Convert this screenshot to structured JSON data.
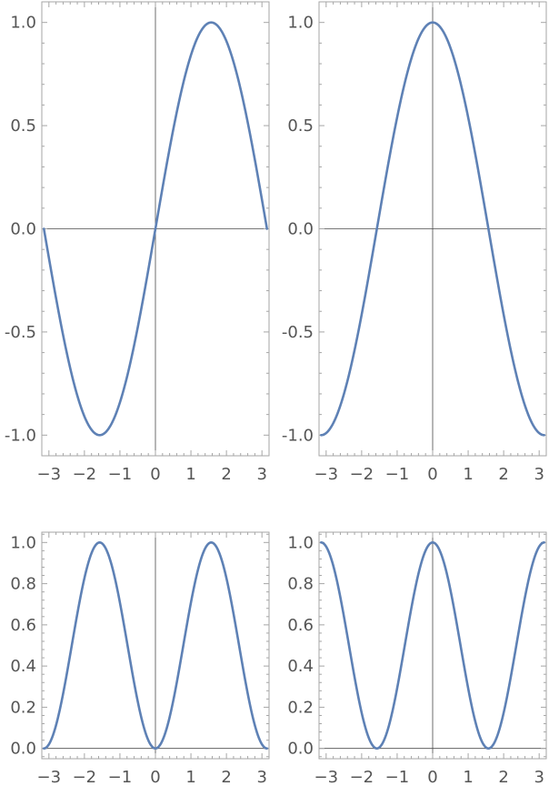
{
  "chart_data": [
    {
      "type": "line",
      "function": "sin(x)",
      "xlim": [
        -3.2,
        3.2
      ],
      "ylim": [
        -1.1,
        1.1
      ],
      "x_ticks": [
        -3,
        -2,
        -1,
        0,
        1,
        2,
        3
      ],
      "x_tick_labels": [
        "−3",
        "−2",
        "−1",
        "0",
        "1",
        "2",
        "3"
      ],
      "y_ticks": [
        -1.0,
        -0.5,
        0.0,
        0.5,
        1.0
      ],
      "y_tick_labels": [
        "-1.0",
        "-0.5",
        "0.0",
        "0.5",
        "1.0"
      ],
      "series": [
        {
          "x": [
            -3.1416,
            -2.618,
            -2.0944,
            -1.5708,
            -1.0472,
            -0.5236,
            0,
            0.5236,
            1.0472,
            1.5708,
            2.0944,
            2.618,
            3.1416
          ],
          "y": [
            0,
            -0.5,
            -0.866,
            -1.0,
            -0.866,
            -0.5,
            0,
            0.5,
            0.866,
            1.0,
            0.866,
            0.5,
            0
          ]
        }
      ],
      "color": "#5e81b5"
    },
    {
      "type": "line",
      "function": "cos(x)",
      "xlim": [
        -3.2,
        3.2
      ],
      "ylim": [
        -1.1,
        1.1
      ],
      "x_ticks": [
        -3,
        -2,
        -1,
        0,
        1,
        2,
        3
      ],
      "x_tick_labels": [
        "−3",
        "−2",
        "−1",
        "0",
        "1",
        "2",
        "3"
      ],
      "y_ticks": [
        -1.0,
        -0.5,
        0.0,
        0.5,
        1.0
      ],
      "y_tick_labels": [
        "-1.0",
        "-0.5",
        "0.0",
        "0.5",
        "1.0"
      ],
      "series": [
        {
          "x": [
            -3.1416,
            -2.618,
            -2.0944,
            -1.5708,
            -1.0472,
            -0.5236,
            0,
            0.5236,
            1.0472,
            1.5708,
            2.0944,
            2.618,
            3.1416
          ],
          "y": [
            -1.0,
            -0.866,
            -0.5,
            0,
            0.5,
            0.866,
            1.0,
            0.866,
            0.5,
            0,
            -0.5,
            -0.866,
            -1.0
          ]
        }
      ],
      "color": "#5e81b5"
    },
    {
      "type": "line",
      "function": "sin(x)^2",
      "xlim": [
        -3.2,
        3.2
      ],
      "ylim": [
        -0.05,
        1.05
      ],
      "x_ticks": [
        -3,
        -2,
        -1,
        0,
        1,
        2,
        3
      ],
      "x_tick_labels": [
        "−3",
        "−2",
        "−1",
        "0",
        "1",
        "2",
        "3"
      ],
      "y_ticks": [
        0.0,
        0.2,
        0.4,
        0.6,
        0.8,
        1.0
      ],
      "y_tick_labels": [
        "0.0",
        "0.2",
        "0.4",
        "0.6",
        "0.8",
        "1.0"
      ],
      "series": [
        {
          "x": [
            -3.1416,
            -2.618,
            -2.0944,
            -1.5708,
            -1.0472,
            -0.5236,
            0,
            0.5236,
            1.0472,
            1.5708,
            2.0944,
            2.618,
            3.1416
          ],
          "y": [
            0,
            0.25,
            0.75,
            1.0,
            0.75,
            0.25,
            0,
            0.25,
            0.75,
            1.0,
            0.75,
            0.25,
            0
          ]
        }
      ],
      "color": "#5e81b5"
    },
    {
      "type": "line",
      "function": "cos(x)^2",
      "xlim": [
        -3.2,
        3.2
      ],
      "ylim": [
        -0.05,
        1.05
      ],
      "x_ticks": [
        -3,
        -2,
        -1,
        0,
        1,
        2,
        3
      ],
      "x_tick_labels": [
        "−3",
        "−2",
        "−1",
        "0",
        "1",
        "2",
        "3"
      ],
      "y_ticks": [
        0.0,
        0.2,
        0.4,
        0.6,
        0.8,
        1.0
      ],
      "y_tick_labels": [
        "0.0",
        "0.2",
        "0.4",
        "0.6",
        "0.8",
        "1.0"
      ],
      "series": [
        {
          "x": [
            -3.1416,
            -2.618,
            -2.0944,
            -1.5708,
            -1.0472,
            -0.5236,
            0,
            0.5236,
            1.0472,
            1.5708,
            2.0944,
            2.618,
            3.1416
          ],
          "y": [
            1.0,
            0.75,
            0.25,
            0,
            0.25,
            0.75,
            1.0,
            0.75,
            0.25,
            0,
            0.25,
            0.75,
            1.0
          ]
        }
      ],
      "color": "#5e81b5"
    }
  ]
}
